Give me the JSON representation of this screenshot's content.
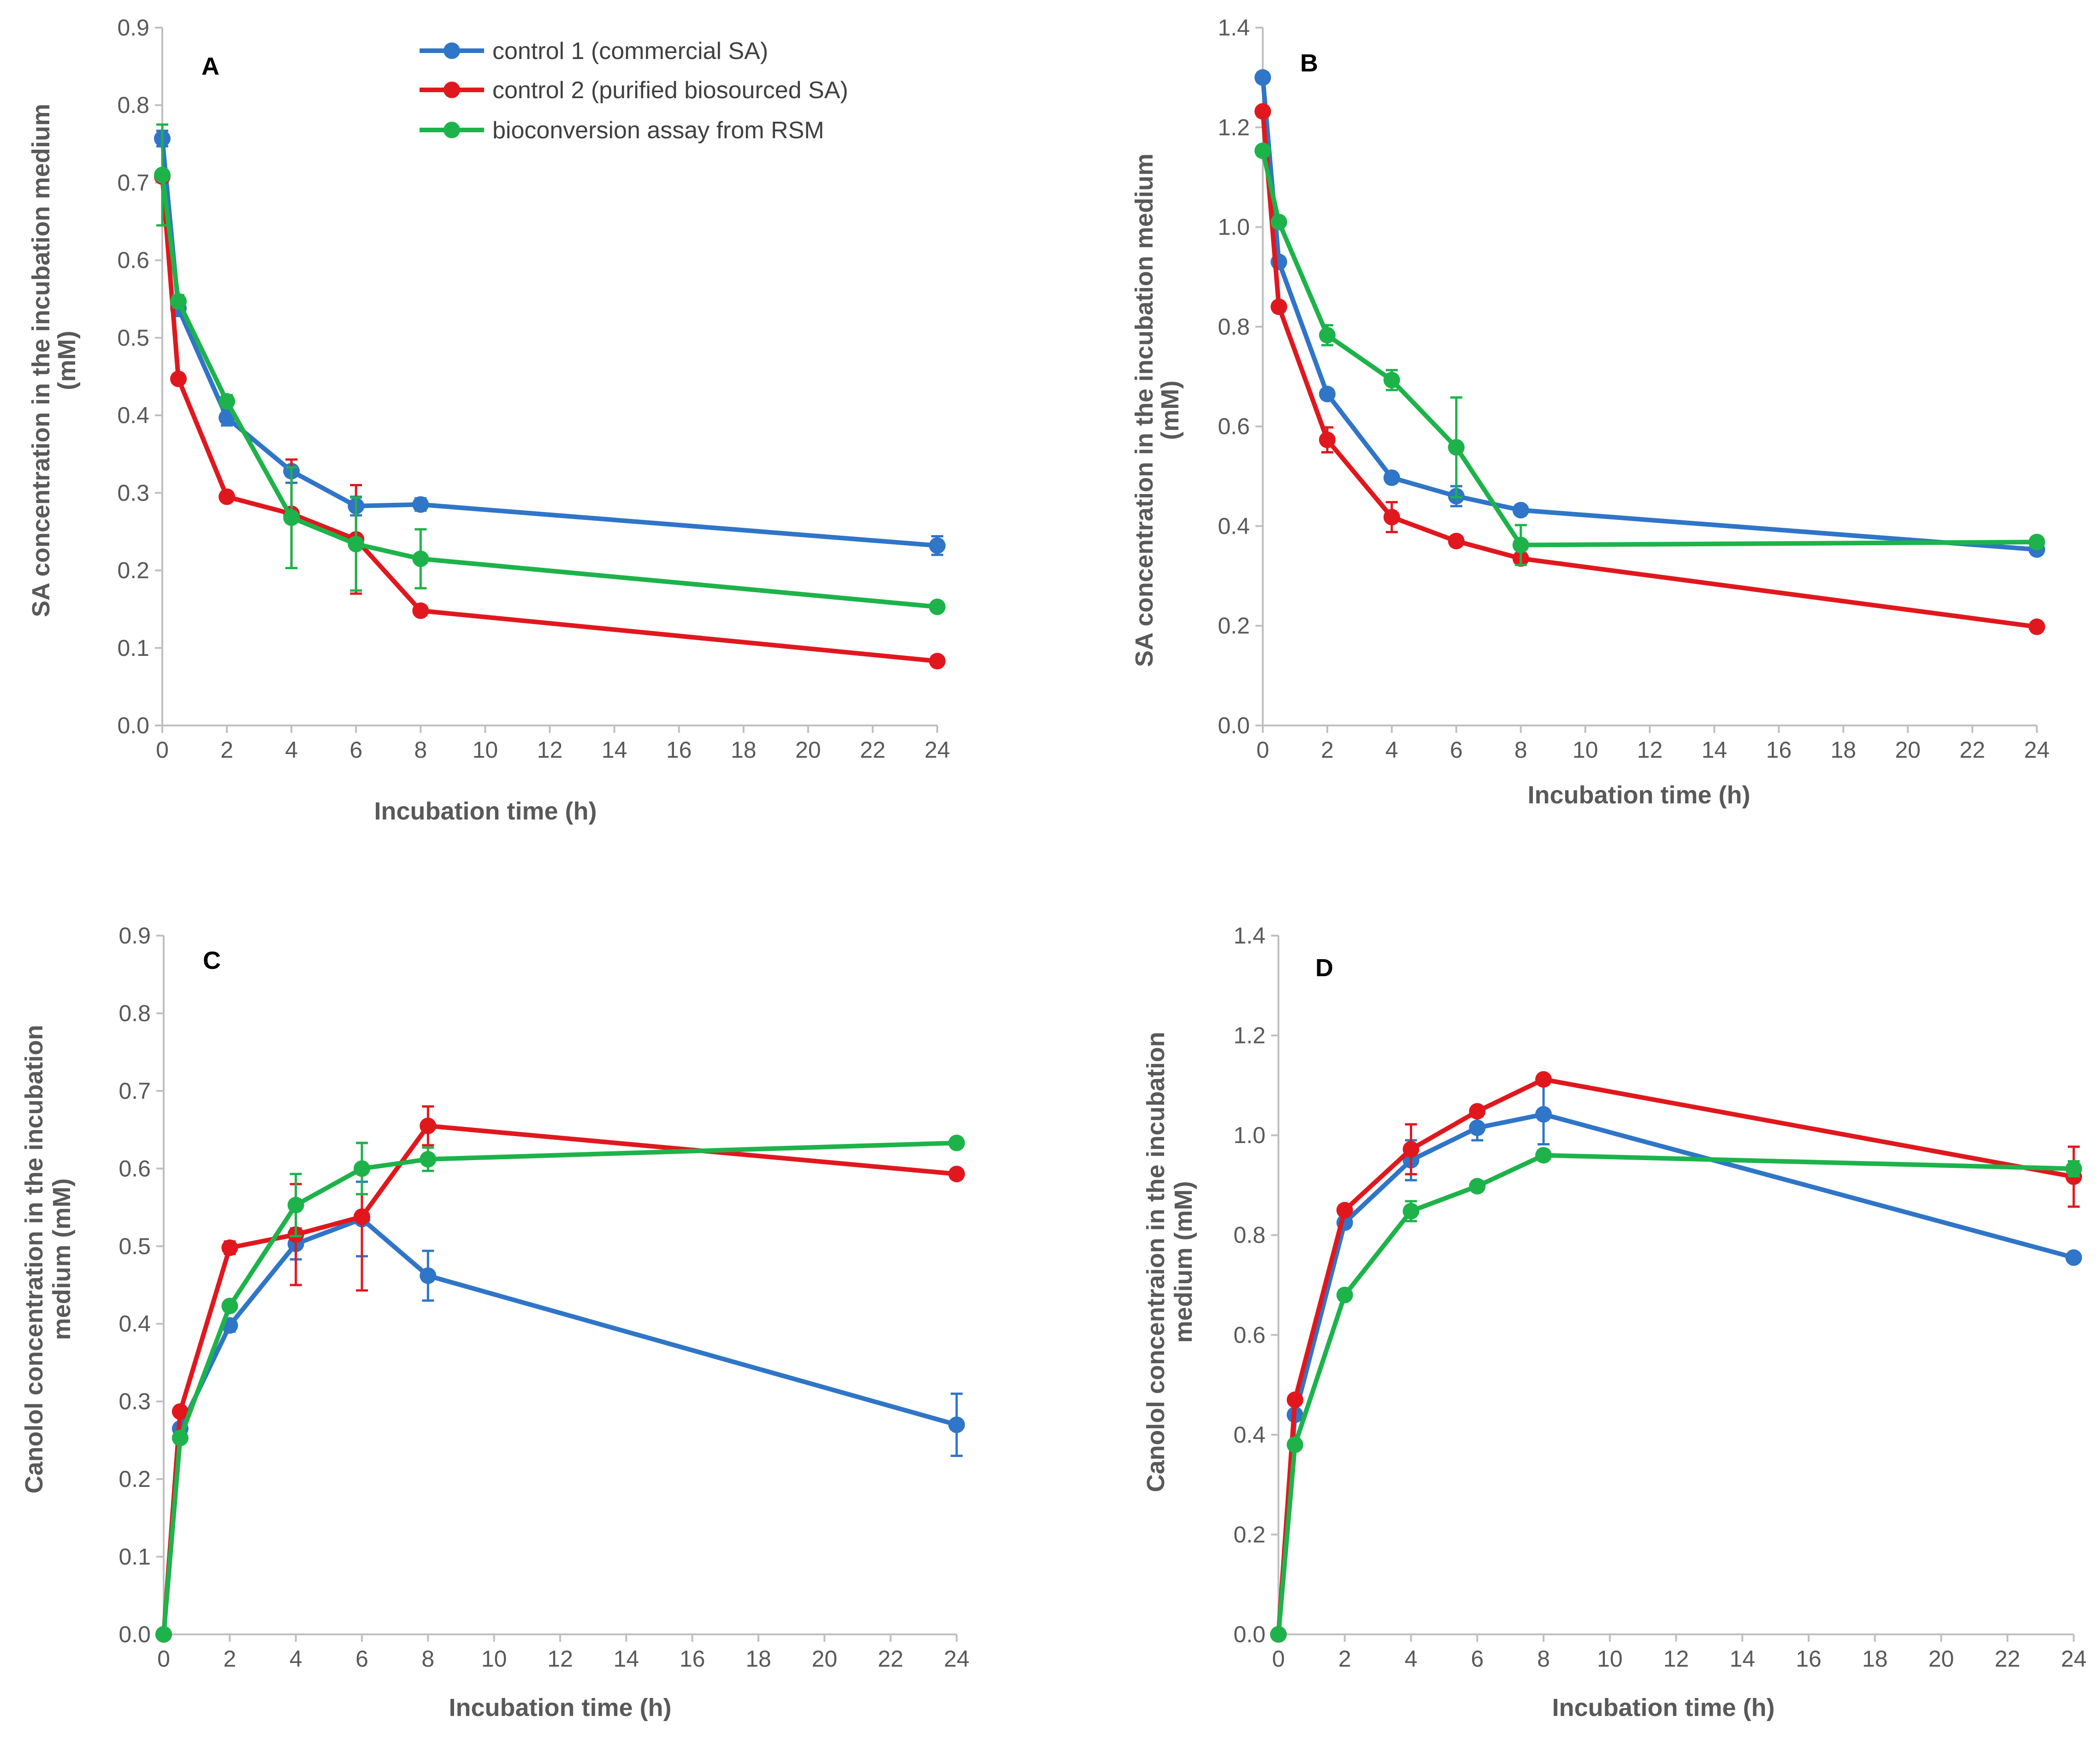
{
  "legend": {
    "series": [
      {
        "name": "control 1 (commercial SA)",
        "color": "#2F75C8"
      },
      {
        "name": "control 2 (purified biosourced SA)",
        "color": "#E0181E"
      },
      {
        "name": "bioconversion assay from RSM",
        "color": "#1DB34A"
      }
    ]
  },
  "chart_data": [
    {
      "panel": "A",
      "type": "line",
      "xlabel": "Incubation time (h)",
      "ylabel": [
        "SA concentration in the incubation medium",
        "(mM)"
      ],
      "xlim": [
        0,
        24
      ],
      "ylim": [
        0,
        0.9
      ],
      "xticks": [
        "0",
        "2",
        "4",
        "6",
        "8",
        "10",
        "12",
        "14",
        "16",
        "18",
        "20",
        "22",
        "24"
      ],
      "yticks": [
        "0.0",
        "0.1",
        "0.2",
        "0.3",
        "0.4",
        "0.5",
        "0.6",
        "0.7",
        "0.8",
        "0.9"
      ],
      "ytick_values": [
        0,
        0.1,
        0.2,
        0.3,
        0.4,
        0.5,
        0.6,
        0.7,
        0.8,
        0.9
      ],
      "x": [
        0,
        0.5,
        2,
        4,
        6,
        8,
        24
      ],
      "series": [
        {
          "name": "control 1 (commercial SA)",
          "color": "#2F75C8",
          "values": [
            0.757,
            0.538,
            0.397,
            0.328,
            0.283,
            0.285,
            0.232
          ],
          "errors": [
            0.01,
            0.01,
            0.01,
            0.015,
            0.012,
            0.008,
            0.012
          ]
        },
        {
          "name": "control 2 (purified biosourced SA)",
          "color": "#E0181E",
          "values": [
            0.708,
            0.447,
            0.295,
            0.273,
            0.24,
            0.148,
            0.083
          ],
          "errors": [
            0.005,
            0.005,
            0.005,
            0.07,
            0.07,
            0.005,
            0.005
          ]
        },
        {
          "name": "bioconversion assay from RSM",
          "color": "#1DB34A",
          "values": [
            0.71,
            0.547,
            0.418,
            0.268,
            0.234,
            0.215,
            0.153
          ],
          "errors": [
            0.065,
            0.008,
            0.008,
            0.065,
            0.06,
            0.038,
            0.005
          ]
        }
      ]
    },
    {
      "panel": "B",
      "type": "line",
      "xlabel": "Incubation time (h)",
      "ylabel": [
        "SA concentration in the incubation medium",
        "(mM)"
      ],
      "xlim": [
        0,
        24
      ],
      "ylim": [
        0,
        1.4
      ],
      "xticks": [
        "0",
        "2",
        "4",
        "6",
        "8",
        "10",
        "12",
        "14",
        "16",
        "18",
        "20",
        "22",
        "24"
      ],
      "yticks": [
        "0.0",
        "0.2",
        "0.4",
        "0.6",
        "0.8",
        "1.0",
        "1.2",
        "1.4"
      ],
      "ytick_values": [
        0,
        0.2,
        0.4,
        0.6,
        0.8,
        1.0,
        1.2,
        1.4
      ],
      "x": [
        0,
        0.5,
        2,
        4,
        6,
        8,
        24
      ],
      "series": [
        {
          "name": "control 1 (commercial SA)",
          "color": "#2F75C8",
          "values": [
            1.3,
            0.93,
            0.665,
            0.497,
            0.46,
            0.432,
            0.353
          ],
          "errors": [
            0.01,
            0.01,
            0.01,
            0.01,
            0.02,
            0.01,
            0.01
          ]
        },
        {
          "name": "control 2 (purified biosourced SA)",
          "color": "#E0181E",
          "values": [
            1.232,
            0.84,
            0.573,
            0.418,
            0.37,
            0.335,
            0.198
          ],
          "errors": [
            0.01,
            0.01,
            0.025,
            0.03,
            0.01,
            0.01,
            0.005
          ]
        },
        {
          "name": "bioconversion assay from RSM",
          "color": "#1DB34A",
          "values": [
            1.153,
            1.01,
            0.783,
            0.693,
            0.558,
            0.362,
            0.368
          ],
          "errors": [
            0.01,
            0.01,
            0.02,
            0.02,
            0.1,
            0.04,
            0.01
          ]
        }
      ]
    },
    {
      "panel": "C",
      "type": "line",
      "xlabel": "Incubation time (h)",
      "ylabel": [
        "Canolol concentration in the incubation",
        "medium (mM)"
      ],
      "xlim": [
        0,
        24
      ],
      "ylim": [
        0,
        0.9
      ],
      "xticks": [
        "0",
        "2",
        "4",
        "6",
        "8",
        "10",
        "12",
        "14",
        "16",
        "18",
        "20",
        "22",
        "24"
      ],
      "yticks": [
        "0.0",
        "0.1",
        "0.2",
        "0.3",
        "0.4",
        "0.5",
        "0.6",
        "0.7",
        "0.8",
        "0.9"
      ],
      "ytick_values": [
        0,
        0.1,
        0.2,
        0.3,
        0.4,
        0.5,
        0.6,
        0.7,
        0.8,
        0.9
      ],
      "x": [
        0,
        0.5,
        2,
        4,
        6,
        8,
        24
      ],
      "series": [
        {
          "name": "control 1 (commercial SA)",
          "color": "#2F75C8",
          "values": [
            0,
            0.265,
            0.398,
            0.503,
            0.535,
            0.462,
            0.27
          ],
          "errors": [
            0,
            0.005,
            0.008,
            0.02,
            0.048,
            0.032,
            0.04
          ]
        },
        {
          "name": "control 2 (purified biosourced SA)",
          "color": "#E0181E",
          "values": [
            0,
            0.287,
            0.498,
            0.515,
            0.538,
            0.655,
            0.593
          ],
          "errors": [
            0,
            0.005,
            0.008,
            0.065,
            0.095,
            0.025,
            0.005
          ]
        },
        {
          "name": "bioconversion assay from RSM",
          "color": "#1DB34A",
          "values": [
            0,
            0.253,
            0.423,
            0.553,
            0.6,
            0.612,
            0.633
          ],
          "errors": [
            0,
            0.005,
            0.005,
            0.04,
            0.033,
            0.015,
            0.005
          ]
        }
      ]
    },
    {
      "panel": "D",
      "type": "line",
      "xlabel": "Incubation time (h)",
      "ylabel": [
        "Canolol concentraion in the incubation",
        "medium (mM)"
      ],
      "xlim": [
        0,
        24
      ],
      "ylim": [
        0,
        1.4
      ],
      "xticks": [
        "0",
        "2",
        "4",
        "6",
        "8",
        "10",
        "12",
        "14",
        "16",
        "18",
        "20",
        "22",
        "24"
      ],
      "yticks": [
        "0.0",
        "0.2",
        "0.4",
        "0.6",
        "0.8",
        "1.0",
        "1.2",
        "1.4"
      ],
      "ytick_values": [
        0,
        0.2,
        0.4,
        0.6,
        0.8,
        1.0,
        1.2,
        1.4
      ],
      "x": [
        0,
        0.5,
        2,
        4,
        6,
        8,
        24
      ],
      "series": [
        {
          "name": "control 1 (commercial SA)",
          "color": "#2F75C8",
          "values": [
            0,
            0.44,
            0.825,
            0.95,
            1.015,
            1.042,
            0.755
          ],
          "errors": [
            0,
            0.01,
            0.01,
            0.04,
            0.025,
            0.06,
            0.005
          ]
        },
        {
          "name": "control 2 (purified biosourced SA)",
          "color": "#E0181E",
          "values": [
            0,
            0.47,
            0.85,
            0.972,
            1.048,
            1.112,
            0.917
          ],
          "errors": [
            0,
            0.01,
            0.01,
            0.05,
            0.01,
            0.01,
            0.06
          ]
        },
        {
          "name": "bioconversion assay from RSM",
          "color": "#1DB34A",
          "values": [
            0,
            0.38,
            0.68,
            0.848,
            0.898,
            0.96,
            0.933
          ],
          "errors": [
            0,
            0.01,
            0.01,
            0.02,
            0.01,
            0.01,
            0.015
          ]
        }
      ]
    }
  ]
}
